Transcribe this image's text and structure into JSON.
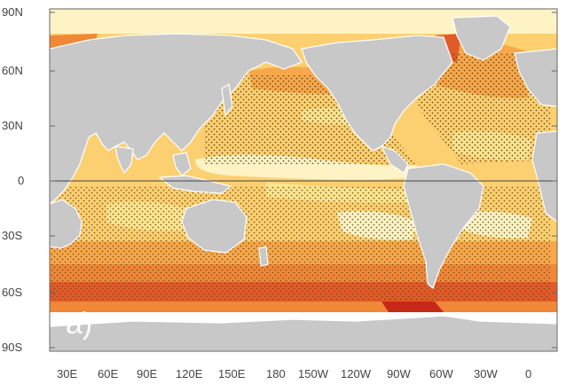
{
  "figure": {
    "panel_label": "a)",
    "lat_labels": [
      "90N",
      "60N",
      "30N",
      "0",
      "30S",
      "60S",
      "90S"
    ],
    "lon_labels": [
      "30E",
      "60E",
      "90E",
      "120E",
      "150E",
      "180",
      "150W",
      "120W",
      "90W",
      "60W",
      "30W",
      "0"
    ]
  },
  "colors": {
    "land": "#c8c8c8",
    "coast": "#ffffff",
    "pale_cream": "#fdf3c4",
    "light_yellow": "#fde590",
    "light_orange": "#fcd070",
    "orange": "#f7a84a",
    "dark_orange": "#f08838",
    "red_orange": "#e25a28",
    "deep_red": "#c82818",
    "stipple": "#6a4a20"
  }
}
